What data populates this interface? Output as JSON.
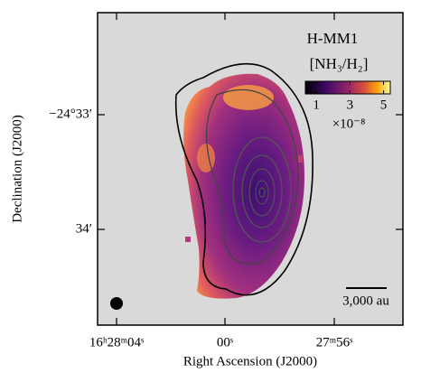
{
  "title": "H-MM1",
  "quantity": "[NH₃/H₂]",
  "colorbar": {
    "lim": [
      0.35,
      5.4
    ],
    "ticks": [
      1,
      3,
      5
    ],
    "multiplier": "×10⁻⁸"
  },
  "scale_bar": "3,000 au",
  "axes": {
    "x_label": "Right Ascension (J2000)",
    "y_label": "Declination (J2000)",
    "x_tick_labels": [
      "16ʰ28ᵐ04ˢ",
      "00ˢ",
      "27ᵐ56ˢ"
    ],
    "y_tick_labels": [
      "−24°33′",
      "34′"
    ]
  }
}
